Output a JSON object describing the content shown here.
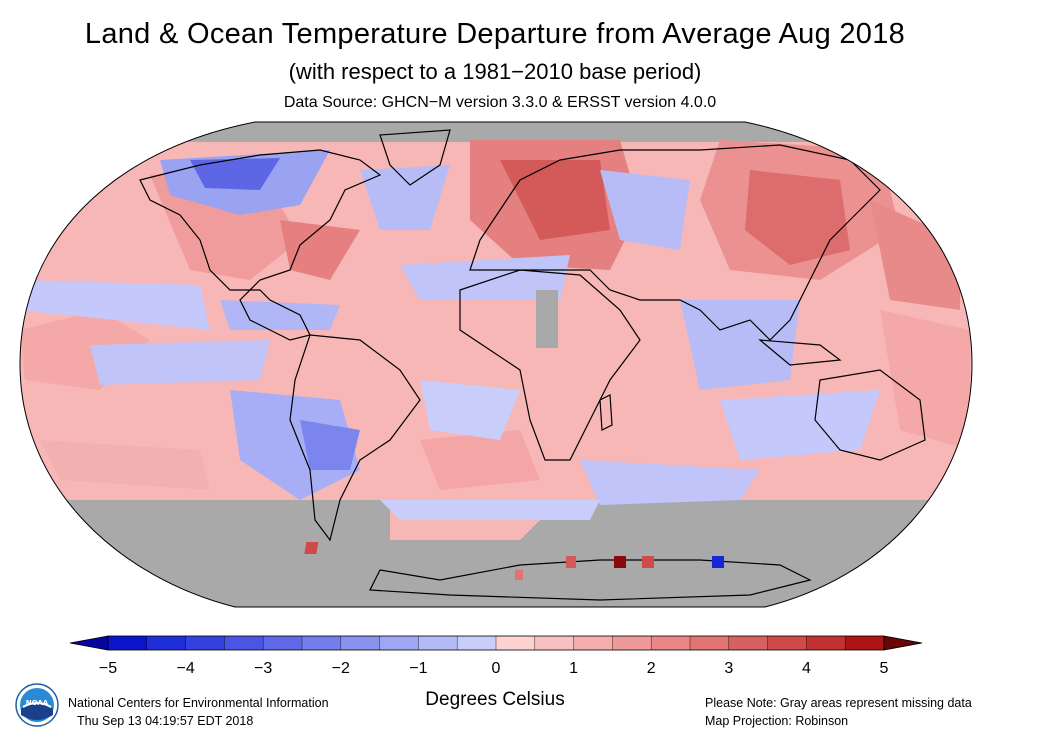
{
  "header": {
    "title": "Land & Ocean Temperature Departure from Average Aug 2018",
    "subtitle": "(with respect to a 1981−2010 base period)",
    "source": "Data Source: GHCN−M version 3.3.0 & ERSST version 4.0.0"
  },
  "map": {
    "projection": "Robinson",
    "missing_color": "#a9a9a9",
    "palette": {
      "cold_5": "#0a14c8",
      "cold_4": "#2e3de0",
      "cold_3": "#5560e6",
      "cold_2": "#7c85ee",
      "cold_1": "#a8aef5",
      "cold_0": "#c9cdfa",
      "warm_0": "#fcd2d2",
      "warm_1": "#f8b7b7",
      "warm_2": "#f09a9a",
      "warm_3": "#e07373",
      "warm_4": "#cf4b4b",
      "warm_5": "#b01515"
    },
    "colorbar": {
      "min": -5,
      "max": 5,
      "ticks": [
        "−5",
        "−4",
        "−3",
        "−2",
        "−1",
        "0",
        "1",
        "2",
        "3",
        "4",
        "5"
      ],
      "label": "Degrees Celsius"
    }
  },
  "footer": {
    "org": "National Centers for Environmental Information",
    "timestamp": "Thu Sep 13 04:19:57 EDT 2018",
    "note": "Please Note: Gray areas represent missing data",
    "projection_note": "Map Projection: Robinson"
  },
  "logo": {
    "icon": "noaa-logo-icon",
    "text": "NOAA"
  }
}
